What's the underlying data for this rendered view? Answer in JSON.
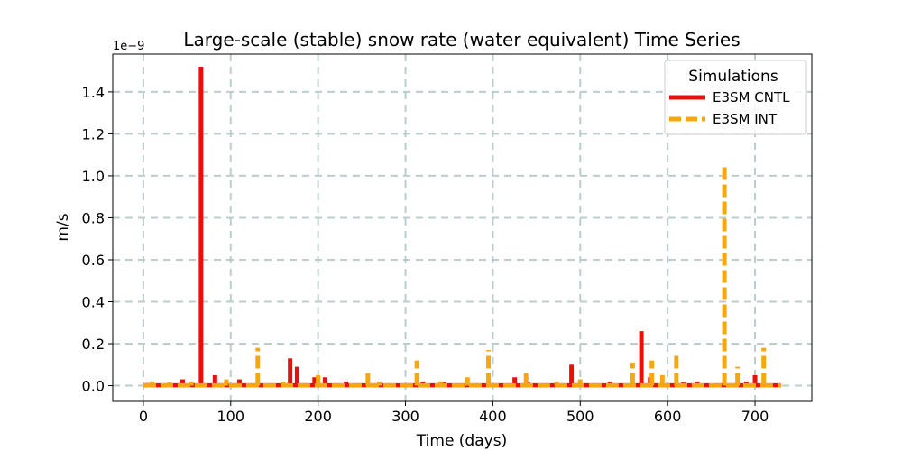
{
  "chart_data": {
    "type": "line",
    "title": "Large-scale (stable) snow rate (water equivalent) Time Series",
    "xlabel": "Time (days)",
    "ylabel": "m/s",
    "y_offset_label": "1e−9",
    "xlim": [
      -35,
      765
    ],
    "ylim": [
      -0.075,
      1.58
    ],
    "x_ticks": [
      0,
      100,
      200,
      300,
      400,
      500,
      600,
      700
    ],
    "x_tick_labels": [
      "0",
      "100",
      "200",
      "300",
      "400",
      "500",
      "600",
      "700"
    ],
    "y_ticks": [
      0.0,
      0.2,
      0.4,
      0.6,
      0.8,
      1.0,
      1.2,
      1.4
    ],
    "y_tick_labels": [
      "0.0",
      "0.2",
      "0.4",
      "0.6",
      "0.8",
      "1.0",
      "1.2",
      "1.4"
    ],
    "grid": true,
    "legend": {
      "title": "Simulations",
      "position": "top-right"
    },
    "series": [
      {
        "name": "E3SM CNTL",
        "color": "#e8100c",
        "style": "solid",
        "x_start": 0,
        "x_end": 730,
        "spikes": [
          [
            5,
            0.012
          ],
          [
            20,
            0.01
          ],
          [
            45,
            0.03
          ],
          [
            66,
            1.52
          ],
          [
            82,
            0.05
          ],
          [
            110,
            0.03
          ],
          [
            168,
            0.13
          ],
          [
            176,
            0.09
          ],
          [
            196,
            0.04
          ],
          [
            208,
            0.04
          ],
          [
            232,
            0.02
          ],
          [
            320,
            0.02
          ],
          [
            344,
            0.015
          ],
          [
            425,
            0.04
          ],
          [
            440,
            0.02
          ],
          [
            490,
            0.1
          ],
          [
            534,
            0.02
          ],
          [
            570,
            0.26
          ],
          [
            580,
            0.04
          ],
          [
            618,
            0.015
          ],
          [
            634,
            0.02
          ],
          [
            690,
            0.02
          ],
          [
            700,
            0.05
          ]
        ]
      },
      {
        "name": "E3SM INT",
        "color": "#f5a712",
        "style": "dashed",
        "x_start": 0,
        "x_end": 730,
        "spikes": [
          [
            10,
            0.02
          ],
          [
            30,
            0.015
          ],
          [
            55,
            0.02
          ],
          [
            95,
            0.03
          ],
          [
            131,
            0.18
          ],
          [
            160,
            0.02
          ],
          [
            200,
            0.05
          ],
          [
            257,
            0.06
          ],
          [
            270,
            0.02
          ],
          [
            313,
            0.12
          ],
          [
            340,
            0.02
          ],
          [
            371,
            0.04
          ],
          [
            395,
            0.17
          ],
          [
            438,
            0.06
          ],
          [
            473,
            0.02
          ],
          [
            500,
            0.03
          ],
          [
            560,
            0.11
          ],
          [
            582,
            0.12
          ],
          [
            594,
            0.05
          ],
          [
            610,
            0.16
          ],
          [
            665,
            1.05
          ],
          [
            680,
            0.09
          ],
          [
            710,
            0.18
          ]
        ]
      }
    ]
  }
}
